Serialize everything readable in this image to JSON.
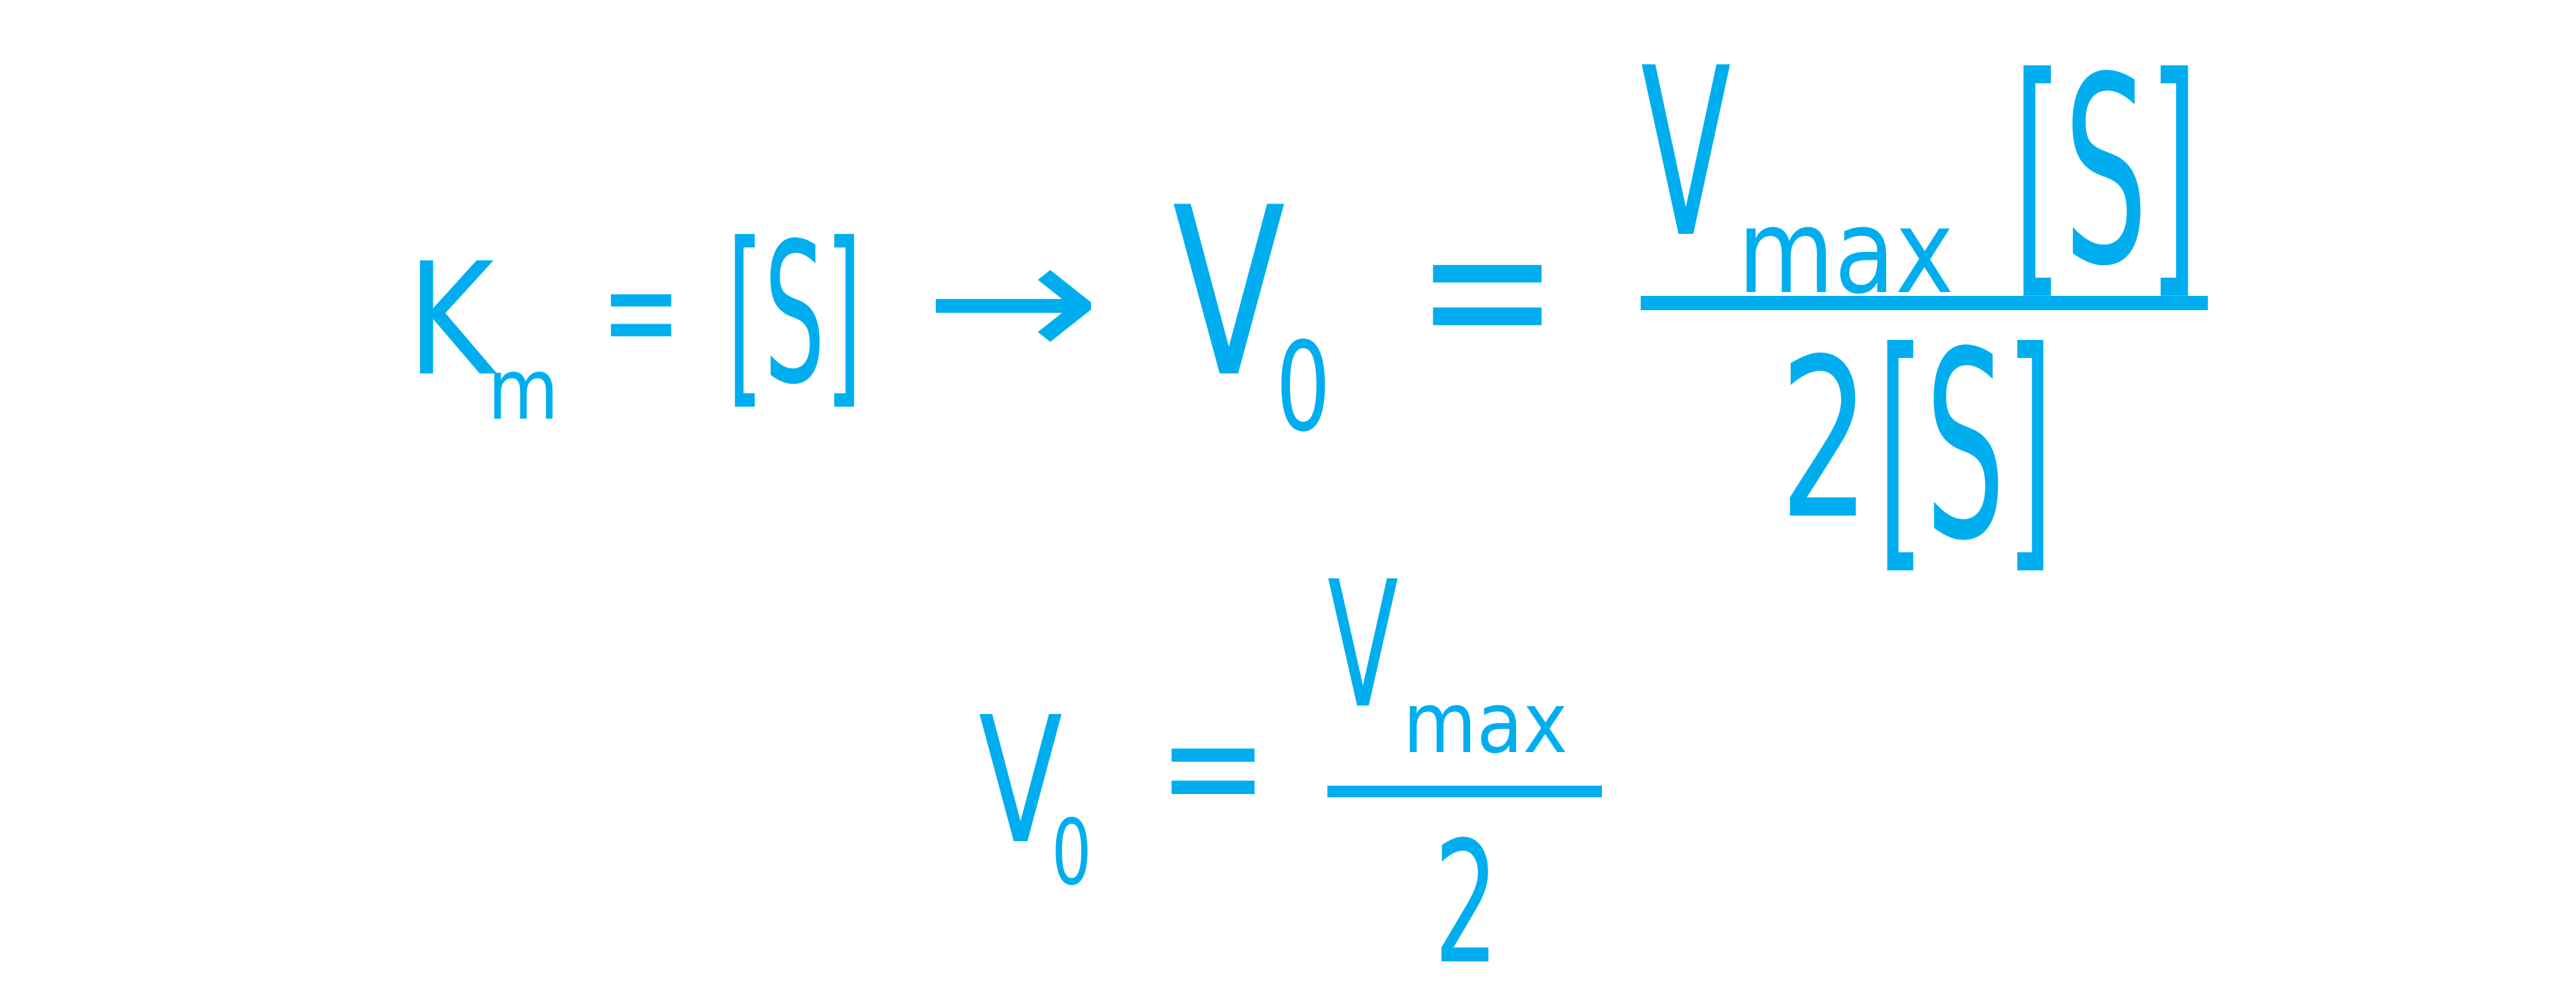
{
  "colors": {
    "ink": "#00AEEF",
    "background": "#ffffff"
  },
  "equation1": {
    "km_main": "K",
    "km_sub": "m",
    "equals": "=",
    "substrate": "[S]",
    "arrow": "→",
    "v_main": "V",
    "v_sub": "0",
    "equals2": "=",
    "numerator_main": "V",
    "numerator_sub": "max",
    "numerator_substrate": "[S]",
    "denominator_coef": "2",
    "denominator_substrate": "[S]"
  },
  "equation2": {
    "v_main": "V",
    "v_sub": "0",
    "equals": "=",
    "numerator_main": "V",
    "numerator_sub": "max",
    "denominator": "2"
  }
}
